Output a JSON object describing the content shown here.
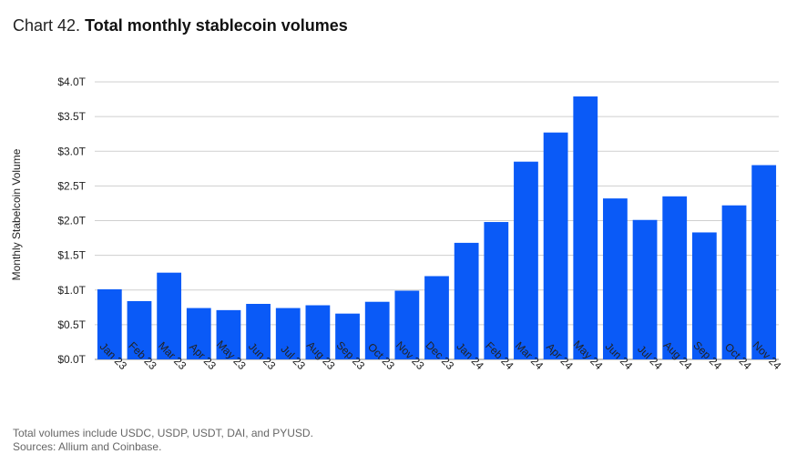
{
  "title": {
    "prefix": "Chart 42.",
    "text": "Total monthly stablecoin volumes"
  },
  "footnotes": {
    "note": "Total volumes include USDC, USDP, USDT, DAI, and PYUSD.",
    "sources": "Sources: Allium and Coinbase."
  },
  "chart_data": {
    "type": "bar",
    "title": "Total monthly stablecoin volumes",
    "xlabel": "",
    "ylabel": "Monthly Stabelcoin Volume",
    "ylim": [
      0,
      4.0
    ],
    "yticks": [
      0,
      0.5,
      1.0,
      1.5,
      2.0,
      2.5,
      3.0,
      3.5,
      4.0
    ],
    "ytick_labels": [
      "$0.0T",
      "$0.5T",
      "$1.0T",
      "$1.5T",
      "$2.0T",
      "$2.5T",
      "$3.0T",
      "$3.5T",
      "$4.0T"
    ],
    "unit": "T",
    "grid": true,
    "bar_color": "#0a5af7",
    "categories": [
      "Jan 23",
      "Feb 23",
      "Mar 23",
      "Apr 23",
      "May 23",
      "Jun 23",
      "Jul 23",
      "Aug 23",
      "Sep 23",
      "Oct 23",
      "Nov 23",
      "Dec 23",
      "Jan 24",
      "Feb 24",
      "Mar 24",
      "Apr 24",
      "May 24",
      "Jun 24",
      "Jul 24",
      "Aug 24",
      "Sep 24",
      "Oct 24",
      "Nov 24"
    ],
    "values": [
      1.01,
      0.84,
      1.25,
      0.74,
      0.71,
      0.8,
      0.74,
      0.78,
      0.66,
      0.83,
      0.99,
      1.2,
      1.68,
      1.98,
      2.85,
      3.27,
      3.79,
      2.32,
      2.01,
      2.35,
      1.83,
      2.22,
      2.8
    ]
  }
}
